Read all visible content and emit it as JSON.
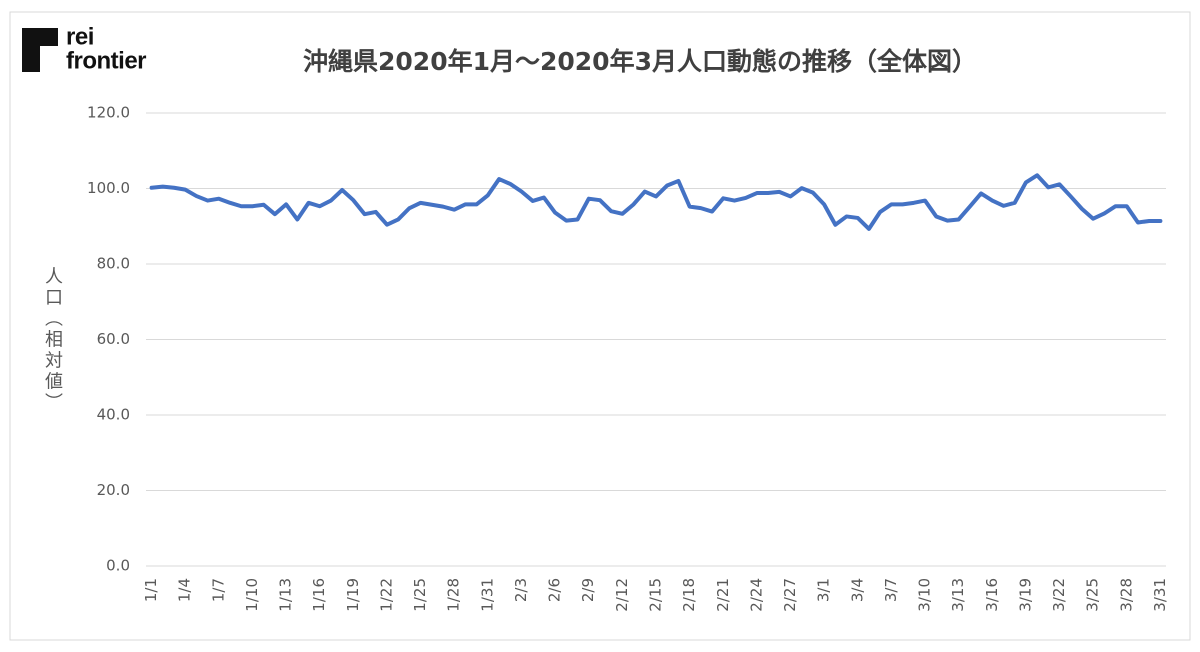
{
  "logo": [
    "rei",
    "frontier"
  ],
  "chart_data": {
    "type": "line",
    "title": "沖縄県2020年1月～2020年3月人口動態の推移（全体図）",
    "y_label": "人口（相対値）",
    "color": "#4472c4",
    "grid": true,
    "ylim": [
      0,
      120
    ],
    "yticks": [
      {
        "value": 0,
        "label": "0.0"
      },
      {
        "value": 20,
        "label": "20.0"
      },
      {
        "value": 40,
        "label": "40.0"
      },
      {
        "value": 60,
        "label": "60.0"
      },
      {
        "value": 80,
        "label": "80.0"
      },
      {
        "value": 100,
        "label": "100.0"
      },
      {
        "value": 120,
        "label": "120.0"
      }
    ],
    "categories": [
      "1/1",
      null,
      null,
      "1/4",
      null,
      null,
      "1/7",
      null,
      null,
      "1/10",
      null,
      null,
      "1/13",
      null,
      null,
      "1/16",
      null,
      null,
      "1/19",
      null,
      null,
      "1/22",
      null,
      null,
      "1/25",
      null,
      null,
      "1/28",
      null,
      null,
      "1/31",
      null,
      null,
      "2/3",
      null,
      null,
      "2/6",
      null,
      null,
      "2/9",
      null,
      null,
      "2/12",
      null,
      null,
      "2/15",
      null,
      null,
      "2/18",
      null,
      null,
      "2/21",
      null,
      null,
      "2/24",
      null,
      null,
      "2/27",
      null,
      null,
      "3/1",
      null,
      null,
      "3/4",
      null,
      null,
      "3/7",
      null,
      null,
      "3/10",
      null,
      null,
      "3/13",
      null,
      null,
      "3/16",
      null,
      null,
      "3/19",
      null,
      null,
      "3/22",
      null,
      null,
      "3/25",
      null,
      null,
      "3/28",
      null,
      null,
      "3/31"
    ],
    "values": [
      100.2,
      100.5,
      100.2,
      99.7,
      98.0,
      96.8,
      97.3,
      96.2,
      95.3,
      95.3,
      95.7,
      93.2,
      95.8,
      91.8,
      96.2,
      95.3,
      96.8,
      99.6,
      96.9,
      93.2,
      93.8,
      90.4,
      91.8,
      94.8,
      96.2,
      95.7,
      95.2,
      94.4,
      95.8,
      95.8,
      98.2,
      102.5,
      101.2,
      99.2,
      96.7,
      97.6,
      93.6,
      91.5,
      91.8,
      97.3,
      96.9,
      94.0,
      93.3,
      95.8,
      99.2,
      97.9,
      100.8,
      102.0,
      95.2,
      94.8,
      93.9,
      97.4,
      96.8,
      97.5,
      98.8,
      98.8,
      99.1,
      97.9,
      100.1,
      98.9,
      95.8,
      90.4,
      92.6,
      92.2,
      89.3,
      93.8,
      95.8,
      95.8,
      96.2,
      96.8,
      92.6,
      91.5,
      91.8,
      95.2,
      98.7,
      96.8,
      95.4,
      96.2,
      101.6,
      103.5,
      100.3,
      101.1,
      97.9,
      94.6,
      92.0,
      93.4,
      95.3,
      95.3,
      91.0,
      91.4,
      91.4
    ]
  }
}
